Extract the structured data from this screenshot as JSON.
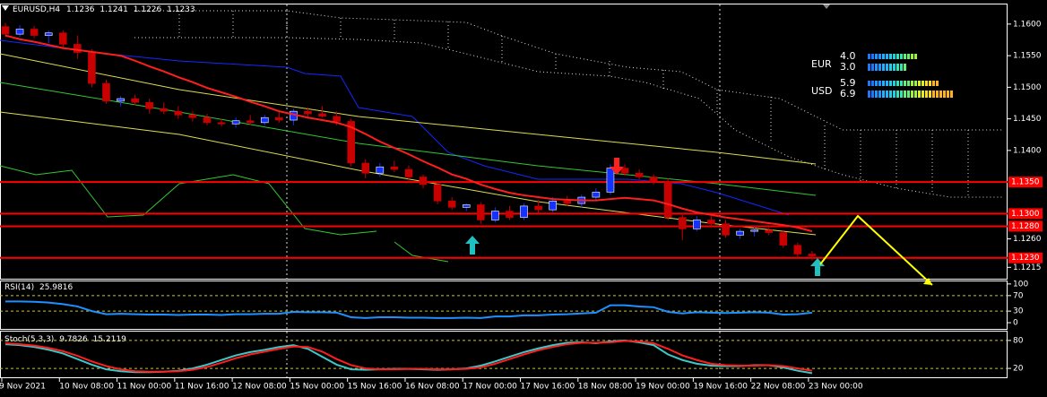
{
  "chart_data": {
    "type": "candlestick",
    "symbol": "EURUSD,H4",
    "categories": [
      "9 Nov 2021",
      null,
      null,
      null,
      "10 Nov 08:00",
      null,
      null,
      null,
      "11 Nov 00:00",
      null,
      null,
      null,
      "11 Nov 16:00",
      null,
      null,
      null,
      "12 Nov 08:00",
      null,
      null,
      null,
      "15 Nov 00:00",
      null,
      null,
      null,
      "15 Nov 16:00",
      null,
      null,
      null,
      "16 Nov 08:00",
      null,
      null,
      null,
      "17 Nov 00:00",
      null,
      null,
      null,
      "17 Nov 16:00",
      null,
      null,
      null,
      "18 Nov 08:00",
      null,
      null,
      null,
      "19 Nov 00:00",
      null,
      null,
      null,
      "19 Nov 16:00",
      null,
      null,
      null,
      "22 Nov 08:00",
      null,
      null,
      null,
      "23 Nov 00:00"
    ],
    "candles": [
      [
        1.1596,
        1.1602,
        1.158,
        1.1584
      ],
      [
        1.1584,
        1.1598,
        1.158,
        1.1592
      ],
      [
        1.1592,
        1.1597,
        1.1578,
        1.1582
      ],
      [
        1.1582,
        1.159,
        1.157,
        1.1586
      ],
      [
        1.1586,
        1.159,
        1.156,
        1.1568
      ],
      [
        1.1568,
        1.1582,
        1.1545,
        1.1555
      ],
      [
        1.1555,
        1.156,
        1.15,
        1.1506
      ],
      [
        1.1506,
        1.1512,
        1.1474,
        1.1478
      ],
      [
        1.1478,
        1.1486,
        1.147,
        1.1482
      ],
      [
        1.1482,
        1.1488,
        1.1472,
        1.1476
      ],
      [
        1.1476,
        1.1482,
        1.1458,
        1.1466
      ],
      [
        1.1466,
        1.1476,
        1.1458,
        1.1462
      ],
      [
        1.1462,
        1.147,
        1.145,
        1.1456
      ],
      [
        1.1456,
        1.1462,
        1.1446,
        1.1452
      ],
      [
        1.1452,
        1.1458,
        1.144,
        1.1444
      ],
      [
        1.1444,
        1.145,
        1.1438,
        1.1442
      ],
      [
        1.1442,
        1.1452,
        1.1436,
        1.1447
      ],
      [
        1.1447,
        1.1456,
        1.144,
        1.1444
      ],
      [
        1.1444,
        1.1456,
        1.144,
        1.1452
      ],
      [
        1.1452,
        1.1462,
        1.1444,
        1.1448
      ],
      [
        1.1448,
        1.1466,
        1.144,
        1.1462
      ],
      [
        1.1462,
        1.1468,
        1.145,
        1.1458
      ],
      [
        1.1458,
        1.147,
        1.1452,
        1.1454
      ],
      [
        1.1454,
        1.1462,
        1.144,
        1.1446
      ],
      [
        1.1446,
        1.145,
        1.1375,
        1.138
      ],
      [
        1.138,
        1.1386,
        1.1356,
        1.1364
      ],
      [
        1.1364,
        1.138,
        1.1358,
        1.1374
      ],
      [
        1.1374,
        1.1384,
        1.1366,
        1.137
      ],
      [
        1.137,
        1.1376,
        1.1352,
        1.1358
      ],
      [
        1.1358,
        1.1362,
        1.134,
        1.1346
      ],
      [
        1.1346,
        1.1352,
        1.1315,
        1.132
      ],
      [
        1.132,
        1.1326,
        1.1306,
        1.131
      ],
      [
        1.131,
        1.1316,
        1.1304,
        1.1314
      ],
      [
        1.1314,
        1.1318,
        1.1284,
        1.129
      ],
      [
        1.129,
        1.131,
        1.1286,
        1.1304
      ],
      [
        1.1304,
        1.1312,
        1.129,
        1.1294
      ],
      [
        1.1294,
        1.1316,
        1.129,
        1.1312
      ],
      [
        1.1312,
        1.1322,
        1.13,
        1.1306
      ],
      [
        1.1306,
        1.1326,
        1.1302,
        1.132
      ],
      [
        1.132,
        1.1328,
        1.1312,
        1.1316
      ],
      [
        1.1316,
        1.133,
        1.131,
        1.1326
      ],
      [
        1.1326,
        1.134,
        1.132,
        1.1334
      ],
      [
        1.1334,
        1.1378,
        1.133,
        1.1372
      ],
      [
        1.1372,
        1.1378,
        1.136,
        1.1364
      ],
      [
        1.1364,
        1.137,
        1.1354,
        1.1358
      ],
      [
        1.1358,
        1.1362,
        1.1346,
        1.135
      ],
      [
        1.135,
        1.1356,
        1.129,
        1.1294
      ],
      [
        1.1294,
        1.13,
        1.1258,
        1.1276
      ],
      [
        1.1276,
        1.1296,
        1.1272,
        1.129
      ],
      [
        1.129,
        1.1296,
        1.128,
        1.1284
      ],
      [
        1.1284,
        1.129,
        1.1262,
        1.1266
      ],
      [
        1.1266,
        1.1276,
        1.126,
        1.1272
      ],
      [
        1.1272,
        1.1278,
        1.1264,
        1.1274
      ],
      [
        1.1274,
        1.1282,
        1.1266,
        1.127
      ],
      [
        1.127,
        1.1274,
        1.1246,
        1.125
      ],
      [
        1.125,
        1.1254,
        1.123,
        1.1236
      ],
      [
        1.1236,
        1.1241,
        1.1226,
        1.1233
      ]
    ],
    "bull_color": "#1432ff",
    "bear_color": "#c80000",
    "ylim": [
      1.1197,
      1.1631
    ],
    "yticks": [
      {
        "value": 1.16,
        "label": "1.1600"
      },
      {
        "value": 1.155,
        "label": "1.1550"
      },
      {
        "value": 1.15,
        "label": "1.1500"
      },
      {
        "value": 1.145,
        "label": "1.1450"
      },
      {
        "value": 1.14,
        "label": "1.1400"
      },
      {
        "value": 1.126,
        "label": "1.1260"
      },
      {
        "value": 1.1215,
        "label": "1.1215"
      }
    ],
    "levels": [
      {
        "value": 1.135,
        "label": "1.1350"
      },
      {
        "value": 1.13,
        "label": "1.1300"
      },
      {
        "value": 1.128,
        "label": "1.1280"
      },
      {
        "value": 1.123,
        "label": "1.1230"
      }
    ],
    "level_color": "#ff0000",
    "ma": {
      "color": "#ff1e1e",
      "values": [
        1.1582,
        1.1576,
        1.1572,
        1.1567,
        1.1562,
        1.1559,
        1.1556,
        1.1553,
        1.155,
        1.1542,
        1.1533,
        1.1525,
        1.1516,
        1.1508,
        1.1499,
        1.1492,
        1.1485,
        1.1477,
        1.147,
        1.1462,
        1.1457,
        1.1452,
        1.1448,
        1.1444,
        1.1437,
        1.1426,
        1.1414,
        1.1404,
        1.1394,
        1.1383,
        1.1373,
        1.1362,
        1.1355,
        1.1346,
        1.1339,
        1.1333,
        1.1329,
        1.1326,
        1.1323,
        1.1322,
        1.1321,
        1.1321,
        1.1323,
        1.1325,
        1.1323,
        1.1321,
        1.1315,
        1.1308,
        1.1302,
        1.1298,
        1.1294,
        1.1291,
        1.1288,
        1.1285,
        1.1282,
        1.1278,
        1.1272
      ]
    },
    "rsi": {
      "label": "RSI(14)",
      "color": "#1e90ff",
      "ylim": [
        -16,
        109
      ],
      "yticks": [
        100,
        70,
        30,
        0
      ],
      "levels": [
        70,
        30
      ],
      "values": [
        55,
        55,
        54,
        52,
        48,
        42,
        30,
        22,
        23,
        22,
        21,
        21,
        20,
        21,
        21,
        20,
        22,
        22,
        23,
        23,
        28,
        27,
        27,
        26,
        14,
        12,
        14,
        14,
        13,
        13,
        12,
        12,
        13,
        12,
        16,
        16,
        19,
        19,
        21,
        22,
        24,
        26,
        45,
        45,
        42,
        40,
        28,
        24,
        27,
        26,
        25,
        26,
        27,
        26,
        21,
        22,
        25.9816
      ]
    },
    "stoch": {
      "label": "Stoch(5,3,3)",
      "ylim": [
        -1,
        101
      ],
      "yticks": [
        80,
        20
      ],
      "levels": [
        80,
        20
      ],
      "series": [
        {
          "color": "#3cc8c8",
          "values": [
            72,
            70,
            66,
            60,
            52,
            40,
            28,
            18,
            14,
            12,
            12,
            13,
            15,
            20,
            28,
            38,
            48,
            55,
            60,
            66,
            70,
            62,
            45,
            28,
            18,
            17,
            18,
            19,
            19,
            18,
            17,
            18,
            20,
            26,
            35,
            45,
            55,
            63,
            70,
            75,
            76,
            74,
            78,
            80,
            76,
            70,
            50,
            38,
            30,
            26,
            25,
            25,
            27,
            27,
            22,
            15,
            9.7826
          ]
        },
        {
          "color": "#ff1e1e",
          "values": [
            74,
            72,
            69,
            64,
            57,
            47,
            35,
            25,
            18,
            14,
            13,
            13,
            14,
            17,
            23,
            32,
            42,
            50,
            56,
            62,
            67,
            66,
            56,
            40,
            27,
            20,
            18,
            18,
            19,
            19,
            18,
            18,
            19,
            22,
            30,
            40,
            50,
            59,
            66,
            72,
            75,
            75,
            76,
            79,
            78,
            74,
            62,
            48,
            38,
            30,
            27,
            26,
            26,
            27,
            25,
            20,
            15.2119
          ]
        }
      ]
    },
    "meter": [
      {
        "name": "EUR",
        "values": [
          4,
          3
        ],
        "value_labels": [
          "4.0",
          "3.0"
        ]
      },
      {
        "name": "USD",
        "values": [
          5.9,
          6.9
        ],
        "value_labels": [
          "5.9",
          "6.9"
        ]
      }
    ]
  }
}
